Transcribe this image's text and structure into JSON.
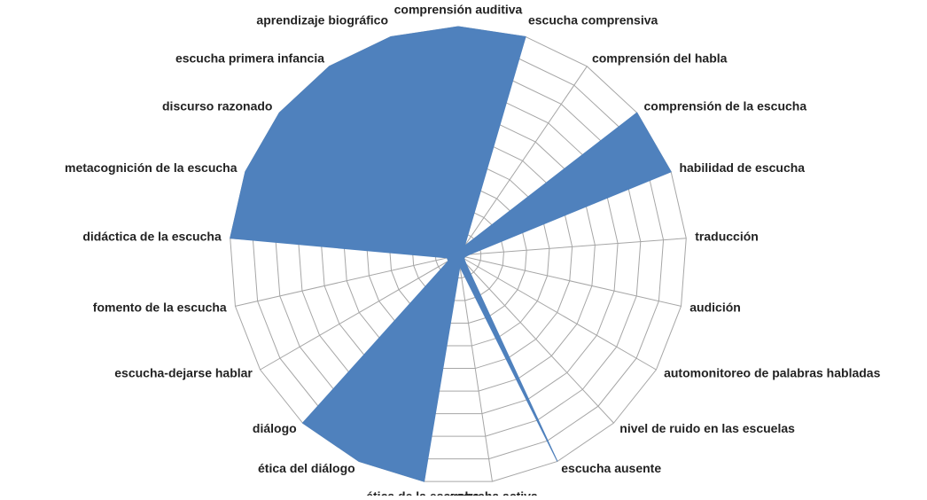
{
  "chart_data": {
    "type": "radar",
    "categories": [
      "comprensión auditiva",
      "escucha comprensiva",
      "comprensión del habla",
      "comprensión de la escucha",
      "habilidad de escucha",
      "traducción",
      "audición",
      "automonitoreo de palabras habladas",
      "nivel de ruido en las escuelas",
      "escucha ausente",
      "escucha activa",
      "ética de la escucha",
      "ética del diálogo",
      "diálogo",
      "escucha-dejarse hablar",
      "fomento de la escucha",
      "didáctica de la escucha",
      "metacognición de la escucha",
      "discurso razonado",
      "escucha primera infancia",
      "aprendizaje biográfico"
    ],
    "values": [
      10,
      10,
      0.5,
      10,
      10,
      0.5,
      0.3,
      0.3,
      0.5,
      10,
      0.5,
      10,
      10,
      10,
      0.5,
      0.5,
      10,
      10,
      10,
      10,
      10
    ],
    "color": "#4f81bd",
    "rlim": [
      0,
      10
    ],
    "rticks": [
      1,
      2,
      3,
      4,
      5,
      6,
      7,
      8,
      9,
      10
    ],
    "grid": true
  }
}
